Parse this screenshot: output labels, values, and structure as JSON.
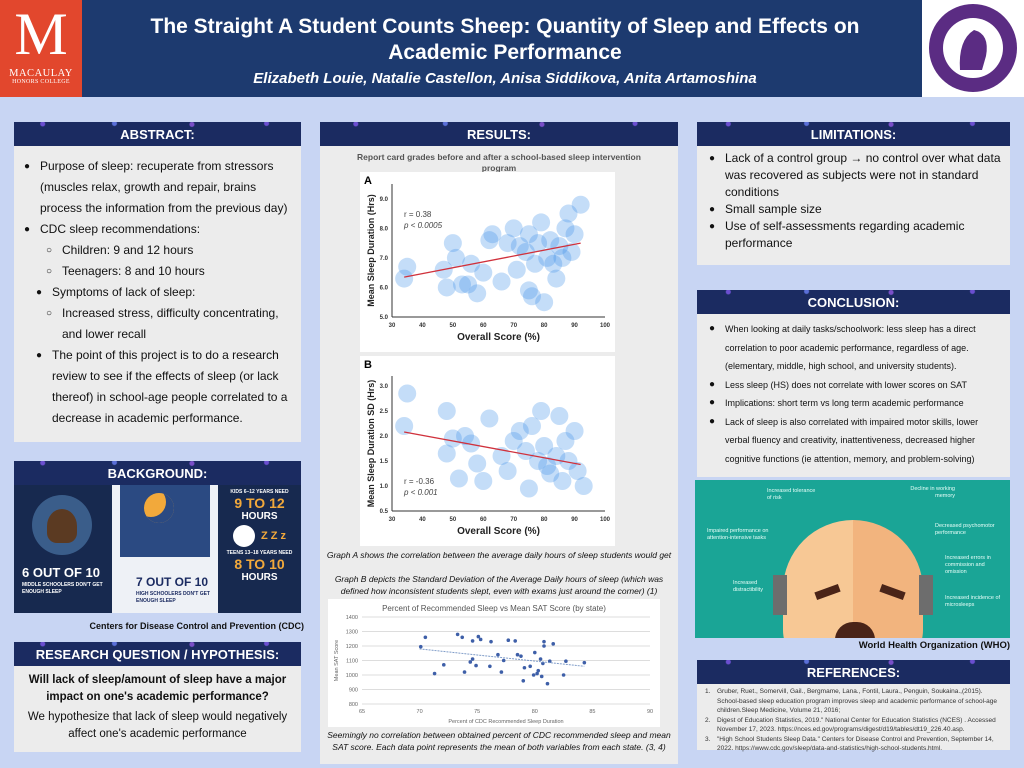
{
  "header": {
    "title": "The Straight A Student Counts Sheep: Quantity of Sleep and Effects on Academic Performance",
    "authors": "Elizabeth Louie, Natalie Castellon, Anisa Siddikova, Anita Artamoshina",
    "left_logo": {
      "letter": "M",
      "name": "MACAULAY",
      "sub": "HONORS COLLEGE"
    },
    "right_logo": {
      "text": "HUNTER COLLEGE · THE CITY UNIVERSITY OF NEW YORK · MIHI CURA FUTURI"
    }
  },
  "abstract": {
    "heading": "ABSTRACT:",
    "items": [
      {
        "level": 1,
        "text": "Purpose of sleep: recuperate from stressors (muscles relax, growth and repair, brains process the information from the previous day)"
      },
      {
        "level": 1,
        "text": "CDC sleep recommendations:"
      },
      {
        "level": 2,
        "text": "Children: 9 and 12 hours"
      },
      {
        "level": 2,
        "text": "Teenagers: 8 and 10 hours"
      },
      {
        "level": 1,
        "text": "Symptoms of lack of sleep:"
      },
      {
        "level": 2,
        "text": "Increased stress, difficulty concentrating, and lower recall"
      },
      {
        "level": 1,
        "text": "The point of this project is to do a research review to see if the effects of sleep (or lack thereof) in school-age people correlated to a decrease in academic performance."
      }
    ]
  },
  "background": {
    "heading": "BACKGROUND:",
    "stat1": "6 OUT OF 10",
    "stat1_sub": "MIDDLE SCHOOLERS DON'T GET ENOUGH SLEEP",
    "stat2": "7 OUT OF 10",
    "stat2_sub": "HIGH SCHOOLERS DON'T GET ENOUGH SLEEP",
    "kids": "KIDS 6–12 YEARS NEED",
    "kids_hours": "9 TO 12",
    "hours": "HOURS",
    "zzz": "Z Z z",
    "teens": "TEENS 13–18 YEARS NEED",
    "teens_hours": "8 TO 10",
    "caption": "Centers for Disease Control and Prevention (CDC)"
  },
  "research": {
    "heading": "RESEARCH QUESTION / HYPOTHESIS:",
    "question": "Will lack of sleep/amount of sleep have a major impact on one's academic performance?",
    "hypothesis": "We hypothesize that lack of sleep would negatively affect one's academic performance"
  },
  "results": {
    "heading": "RESULTS:",
    "figure_title": "Report card grades before and after a school-based sleep intervention program",
    "caption1": "Graph A shows the correlation between the average daily hours of sleep students would get",
    "caption2": "Graph B depicts the Standard Deviation of the Average Daily hours of sleep (which was defined how inconsistent students slept, even with exams just around the corner) (1)",
    "caption3": "Seemingly no correlation between obtained percent of CDC recommended sleep and mean SAT score. Each data point represents the mean of both variables from each state. (3, 4)"
  },
  "chart_data": [
    {
      "type": "scatter",
      "panel": "A",
      "xlabel": "Overall Score (%)",
      "ylabel": "Mean Sleep Duration (Hrs)",
      "xlim": [
        30,
        100
      ],
      "ylim": [
        5,
        9.5
      ],
      "xticks": [
        30,
        40,
        50,
        60,
        70,
        80,
        90,
        100
      ],
      "yticks": [
        "5.0",
        "6.0",
        "7.0",
        "8.0",
        "9.0"
      ],
      "annotation": [
        "r = 0.38",
        "p < 0.0005"
      ],
      "trend": [
        [
          34,
          6.35
        ],
        [
          92,
          7.5
        ]
      ],
      "points": [
        [
          34,
          6.3
        ],
        [
          35,
          6.7
        ],
        [
          47,
          6.6
        ],
        [
          48,
          6.0
        ],
        [
          50,
          7.5
        ],
        [
          51,
          7.0
        ],
        [
          53,
          6.1
        ],
        [
          55,
          6.1
        ],
        [
          56,
          6.8
        ],
        [
          58,
          5.8
        ],
        [
          60,
          6.5
        ],
        [
          62,
          7.6
        ],
        [
          63,
          7.8
        ],
        [
          66,
          6.2
        ],
        [
          68,
          7.5
        ],
        [
          70,
          8.0
        ],
        [
          71,
          6.6
        ],
        [
          72,
          7.4
        ],
        [
          74,
          7.2
        ],
        [
          75,
          7.8
        ],
        [
          75,
          5.9
        ],
        [
          76,
          5.7
        ],
        [
          77,
          6.8
        ],
        [
          78,
          7.5
        ],
        [
          79,
          8.2
        ],
        [
          80,
          5.5
        ],
        [
          81,
          7.0
        ],
        [
          82,
          7.6
        ],
        [
          83,
          6.8
        ],
        [
          84,
          6.3
        ],
        [
          85,
          7.4
        ],
        [
          86,
          7.0
        ],
        [
          87,
          8.0
        ],
        [
          88,
          8.5
        ],
        [
          89,
          7.2
        ],
        [
          90,
          7.8
        ],
        [
          92,
          8.8
        ]
      ]
    },
    {
      "type": "scatter",
      "panel": "B",
      "xlabel": "Overall Score (%)",
      "ylabel": "Mean Sleep Duration SD (Hrs)",
      "xlim": [
        30,
        100
      ],
      "ylim": [
        0.5,
        3.2
      ],
      "xticks": [
        30,
        40,
        50,
        60,
        70,
        80,
        90,
        100
      ],
      "yticks": [
        "0.5",
        "1.0",
        "1.5",
        "2.0",
        "2.5",
        "3.0"
      ],
      "annotation": [
        "r = -0.36",
        "p < 0.001"
      ],
      "trend": [
        [
          34,
          2.08
        ],
        [
          92,
          1.43
        ]
      ],
      "points": [
        [
          35,
          2.85
        ],
        [
          34,
          2.2
        ],
        [
          48,
          2.5
        ],
        [
          48,
          1.65
        ],
        [
          50,
          1.95
        ],
        [
          52,
          1.15
        ],
        [
          54,
          2.0
        ],
        [
          56,
          1.85
        ],
        [
          58,
          1.45
        ],
        [
          60,
          1.1
        ],
        [
          62,
          2.35
        ],
        [
          66,
          1.6
        ],
        [
          68,
          1.3
        ],
        [
          70,
          1.9
        ],
        [
          72,
          2.1
        ],
        [
          74,
          1.7
        ],
        [
          75,
          0.95
        ],
        [
          76,
          2.2
        ],
        [
          78,
          1.5
        ],
        [
          79,
          2.5
        ],
        [
          80,
          1.8
        ],
        [
          81,
          1.4
        ],
        [
          82,
          1.25
        ],
        [
          84,
          1.6
        ],
        [
          85,
          2.4
        ],
        [
          86,
          1.1
        ],
        [
          87,
          1.9
        ],
        [
          88,
          1.5
        ],
        [
          90,
          2.1
        ],
        [
          91,
          1.3
        ],
        [
          93,
          1.0
        ]
      ]
    },
    {
      "type": "scatter",
      "panel": "SAT",
      "title": "Percent of Recommended Sleep vs Mean SAT Score (by state)",
      "xlabel": "Percent of CDC Recommended Sleep Duration",
      "ylabel": "Mean SAT Score",
      "xlim": [
        65,
        90
      ],
      "ylim": [
        800,
        1400
      ],
      "xticks": [
        65,
        70,
        75,
        80,
        85,
        90
      ],
      "yticks": [
        800,
        900,
        1000,
        1100,
        1200,
        1300,
        1400
      ],
      "trend": [
        [
          70,
          1180
        ],
        [
          84.3,
          1060
        ]
      ],
      "points": [
        [
          70.1,
          1195
        ],
        [
          70.5,
          1260
        ],
        [
          71.3,
          1010
        ],
        [
          72.1,
          1070
        ],
        [
          73.3,
          1280
        ],
        [
          73.7,
          1260
        ],
        [
          73.9,
          1020
        ],
        [
          74.4,
          1090
        ],
        [
          74.6,
          1235
        ],
        [
          74.6,
          1110
        ],
        [
          74.9,
          1065
        ],
        [
          75.1,
          1265
        ],
        [
          75.3,
          1245
        ],
        [
          76.1,
          1060
        ],
        [
          76.2,
          1230
        ],
        [
          76.8,
          1140
        ],
        [
          77.1,
          1020
        ],
        [
          77.3,
          1100
        ],
        [
          77.7,
          1240
        ],
        [
          78.3,
          1235
        ],
        [
          78.5,
          1140
        ],
        [
          78.8,
          1130
        ],
        [
          79,
          960
        ],
        [
          79.1,
          1050
        ],
        [
          79.6,
          1060
        ],
        [
          79.9,
          1000
        ],
        [
          80,
          1155
        ],
        [
          80.2,
          1010
        ],
        [
          80.3,
          1030
        ],
        [
          80.5,
          1110
        ],
        [
          80.6,
          990
        ],
        [
          80.7,
          1080
        ],
        [
          80.8,
          1230
        ],
        [
          80.8,
          1200
        ],
        [
          81.1,
          940
        ],
        [
          81.3,
          1095
        ],
        [
          81.6,
          1215
        ],
        [
          82.5,
          1000
        ],
        [
          82.7,
          1095
        ],
        [
          84.3,
          1085
        ]
      ]
    }
  ],
  "limitations": {
    "heading": "LIMITATIONS:",
    "items": [
      "Lack of a control group → no control over what data was recovered as subjects were not in standard conditions",
      "Small sample size",
      "Use of self-assessments regarding academic performance"
    ]
  },
  "conclusion": {
    "heading": "CONCLUSION:",
    "items": [
      "When looking at daily tasks/schoolwork: less sleep has a direct correlation to poor academic performance, regardless of age. (elementary, middle, high school, and university students).",
      "Less sleep (HS) does not correlate with lower scores on SAT",
      "Implications: short term vs long term academic performance",
      "Lack of sleep is also correlated with impaired motor skills, lower verbal fluency and creativity, inattentiveness, decreased higher cognitive functions (ie attention, memory, and problem-solving)"
    ]
  },
  "who": {
    "labels": [
      "Increased tolerance of risk",
      "Decline in working memory",
      "Impaired performance on attention-intensive tasks",
      "Decreased psychomotor performance",
      "Increased errors in commission and omission",
      "Increased distractibility",
      "Increased incidence of microsleeps"
    ],
    "caption": "World Health Organization (WHO)"
  },
  "references": {
    "heading": "REFERENCES:",
    "items": [
      "Gruber, Ruet., Somervill, Gail., Bergmame, Lana., Fontil, Laura., Penguin, Soukaina.,(2015). School-based sleep education program improves sleep and academic performance of school-age children.Sleep Medicine, Volume 21, 2016;",
      "Digest of Education Statistics, 2019.\" National Center for Education Statistics (NCES) . Accessed November 17, 2023. https://nces.ed.gov/programs/digest/d19/tables/dt19_226.40.asp.",
      "\"High School Students Sleep Data.\" Centers for Disease Control and Prevention, September 14, 2022. https://www.cdc.gov/sleep/data-and-statistics/high-school-students.html."
    ]
  },
  "colors": {
    "header": "#1d3a6f",
    "panel_header": "#1b2b61",
    "background": "#c8d5f3",
    "panel": "#ececec",
    "macaulay": "#e2472d",
    "hunter": "#5b2c83",
    "who_teal": "#1aa596",
    "trend": "#d0313c",
    "bubble": "#3d8ee8"
  }
}
